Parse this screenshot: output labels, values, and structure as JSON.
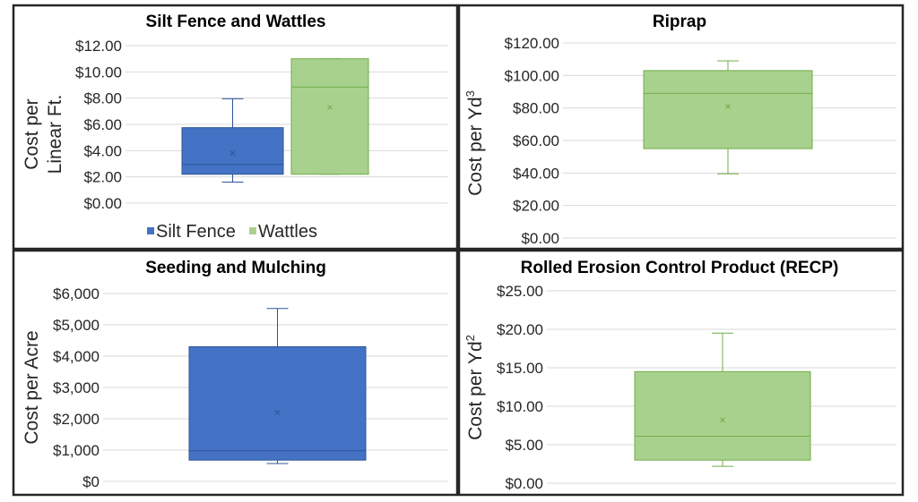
{
  "chart_data": [
    {
      "type": "box",
      "title": "Silt Fence and Wattles",
      "ylabel_lines": [
        "Cost per",
        "Linear Ft."
      ],
      "ylim": [
        0,
        12
      ],
      "yticks": [
        0,
        2,
        4,
        6,
        8,
        10,
        12
      ],
      "ytick_labels": [
        "$0.00",
        "$2.00",
        "$4.00",
        "$6.00",
        "$8.00",
        "$10.00",
        "$12.00"
      ],
      "legend": "bottom",
      "series": [
        {
          "name": "Silt Fence",
          "color": "#4472c4",
          "stroke": "#2f5597",
          "min": 1.6,
          "q1": 2.2,
          "median": 2.95,
          "q3": 5.75,
          "max": 7.95,
          "mean": 3.8
        },
        {
          "name": "Wattles",
          "color": "#a9d18e",
          "stroke": "#70ad47",
          "min": 2.2,
          "q1": 2.2,
          "median": 8.85,
          "q3": 11.0,
          "max": 11.0,
          "mean": 7.3
        }
      ]
    },
    {
      "type": "box",
      "title": "Riprap",
      "ylabel_lines": [
        "Cost per Yd"
      ],
      "ylabel_sup": "3",
      "ylim": [
        0,
        120
      ],
      "yticks": [
        0,
        20,
        40,
        60,
        80,
        100,
        120
      ],
      "ytick_labels": [
        "$0.00",
        "$20.00",
        "$40.00",
        "$60.00",
        "$80.00",
        "$100.00",
        "$120.00"
      ],
      "series": [
        {
          "color": "#a9d18e",
          "stroke": "#70ad47",
          "min": 39.5,
          "q1": 55,
          "median": 89,
          "q3": 103,
          "max": 109,
          "mean": 81
        }
      ]
    },
    {
      "type": "box",
      "title": "Seeding and Mulching",
      "ylabel_lines": [
        "Cost per Acre"
      ],
      "ylim": [
        0,
        6000
      ],
      "yticks": [
        0,
        1000,
        2000,
        3000,
        4000,
        5000,
        6000
      ],
      "ytick_labels": [
        "$0",
        "$1,000",
        "$2,000",
        "$3,000",
        "$4,000",
        "$5,000",
        "$6,000"
      ],
      "series": [
        {
          "color": "#4472c4",
          "stroke": "#2f5597",
          "min": 570,
          "q1": 680,
          "median": 980,
          "q3": 4300,
          "max": 5520,
          "mean": 2200
        }
      ]
    },
    {
      "type": "box",
      "title": "Rolled Erosion Control Product (RECP)",
      "ylabel_lines": [
        "Cost per Yd"
      ],
      "ylabel_sup": "2",
      "ylim": [
        0,
        25
      ],
      "yticks": [
        0,
        5,
        10,
        15,
        20,
        25
      ],
      "ytick_labels": [
        "$0.00",
        "$5.00",
        "$10.00",
        "$15.00",
        "$20.00",
        "$25.00"
      ],
      "series": [
        {
          "color": "#a9d18e",
          "stroke": "#70ad47",
          "min": 2.2,
          "q1": 3.0,
          "median": 6.1,
          "q3": 14.5,
          "max": 19.5,
          "mean": 8.2
        }
      ]
    }
  ]
}
